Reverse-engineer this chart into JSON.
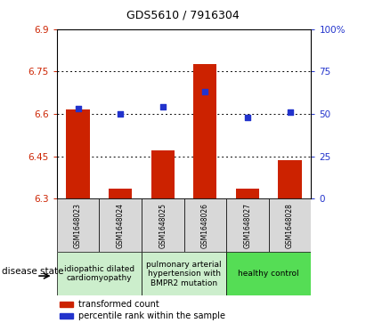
{
  "title": "GDS5610 / 7916304",
  "samples": [
    "GSM1648023",
    "GSM1648024",
    "GSM1648025",
    "GSM1648026",
    "GSM1648027",
    "GSM1648028"
  ],
  "bar_values": [
    6.615,
    6.335,
    6.47,
    6.775,
    6.335,
    6.435
  ],
  "scatter_percentiles": [
    53,
    50,
    54,
    63,
    48,
    51
  ],
  "ylim_left": [
    6.3,
    6.9
  ],
  "ylim_right": [
    0,
    100
  ],
  "yticks_left": [
    6.3,
    6.45,
    6.6,
    6.75,
    6.9
  ],
  "ytick_labels_left": [
    "6.3",
    "6.45",
    "6.6",
    "6.75",
    "6.9"
  ],
  "yticks_right": [
    0,
    25,
    50,
    75,
    100
  ],
  "ytick_labels_right": [
    "0",
    "25",
    "50",
    "75",
    "100%"
  ],
  "bar_color": "#cc2200",
  "scatter_color": "#2233cc",
  "disease_groups": [
    {
      "label": "idiopathic dilated\ncardiomyopathy",
      "start": 0,
      "end": 1,
      "color": "#cceecc"
    },
    {
      "label": "pulmonary arterial\nhypertension with\nBMPR2 mutation",
      "start": 2,
      "end": 3,
      "color": "#cceecc"
    },
    {
      "label": "healthy control",
      "start": 4,
      "end": 5,
      "color": "#55dd55"
    }
  ],
  "legend_bar_label": "transformed count",
  "legend_scatter_label": "percentile rank within the sample",
  "disease_state_label": "disease state",
  "bar_color_legend": "#cc2200",
  "scatter_color_legend": "#2233cc",
  "bg_color_sample": "#d8d8d8",
  "title_fontsize": 9,
  "axis_fontsize": 7.5,
  "sample_fontsize": 5.5,
  "disease_fontsize": 6.5,
  "legend_fontsize": 7
}
